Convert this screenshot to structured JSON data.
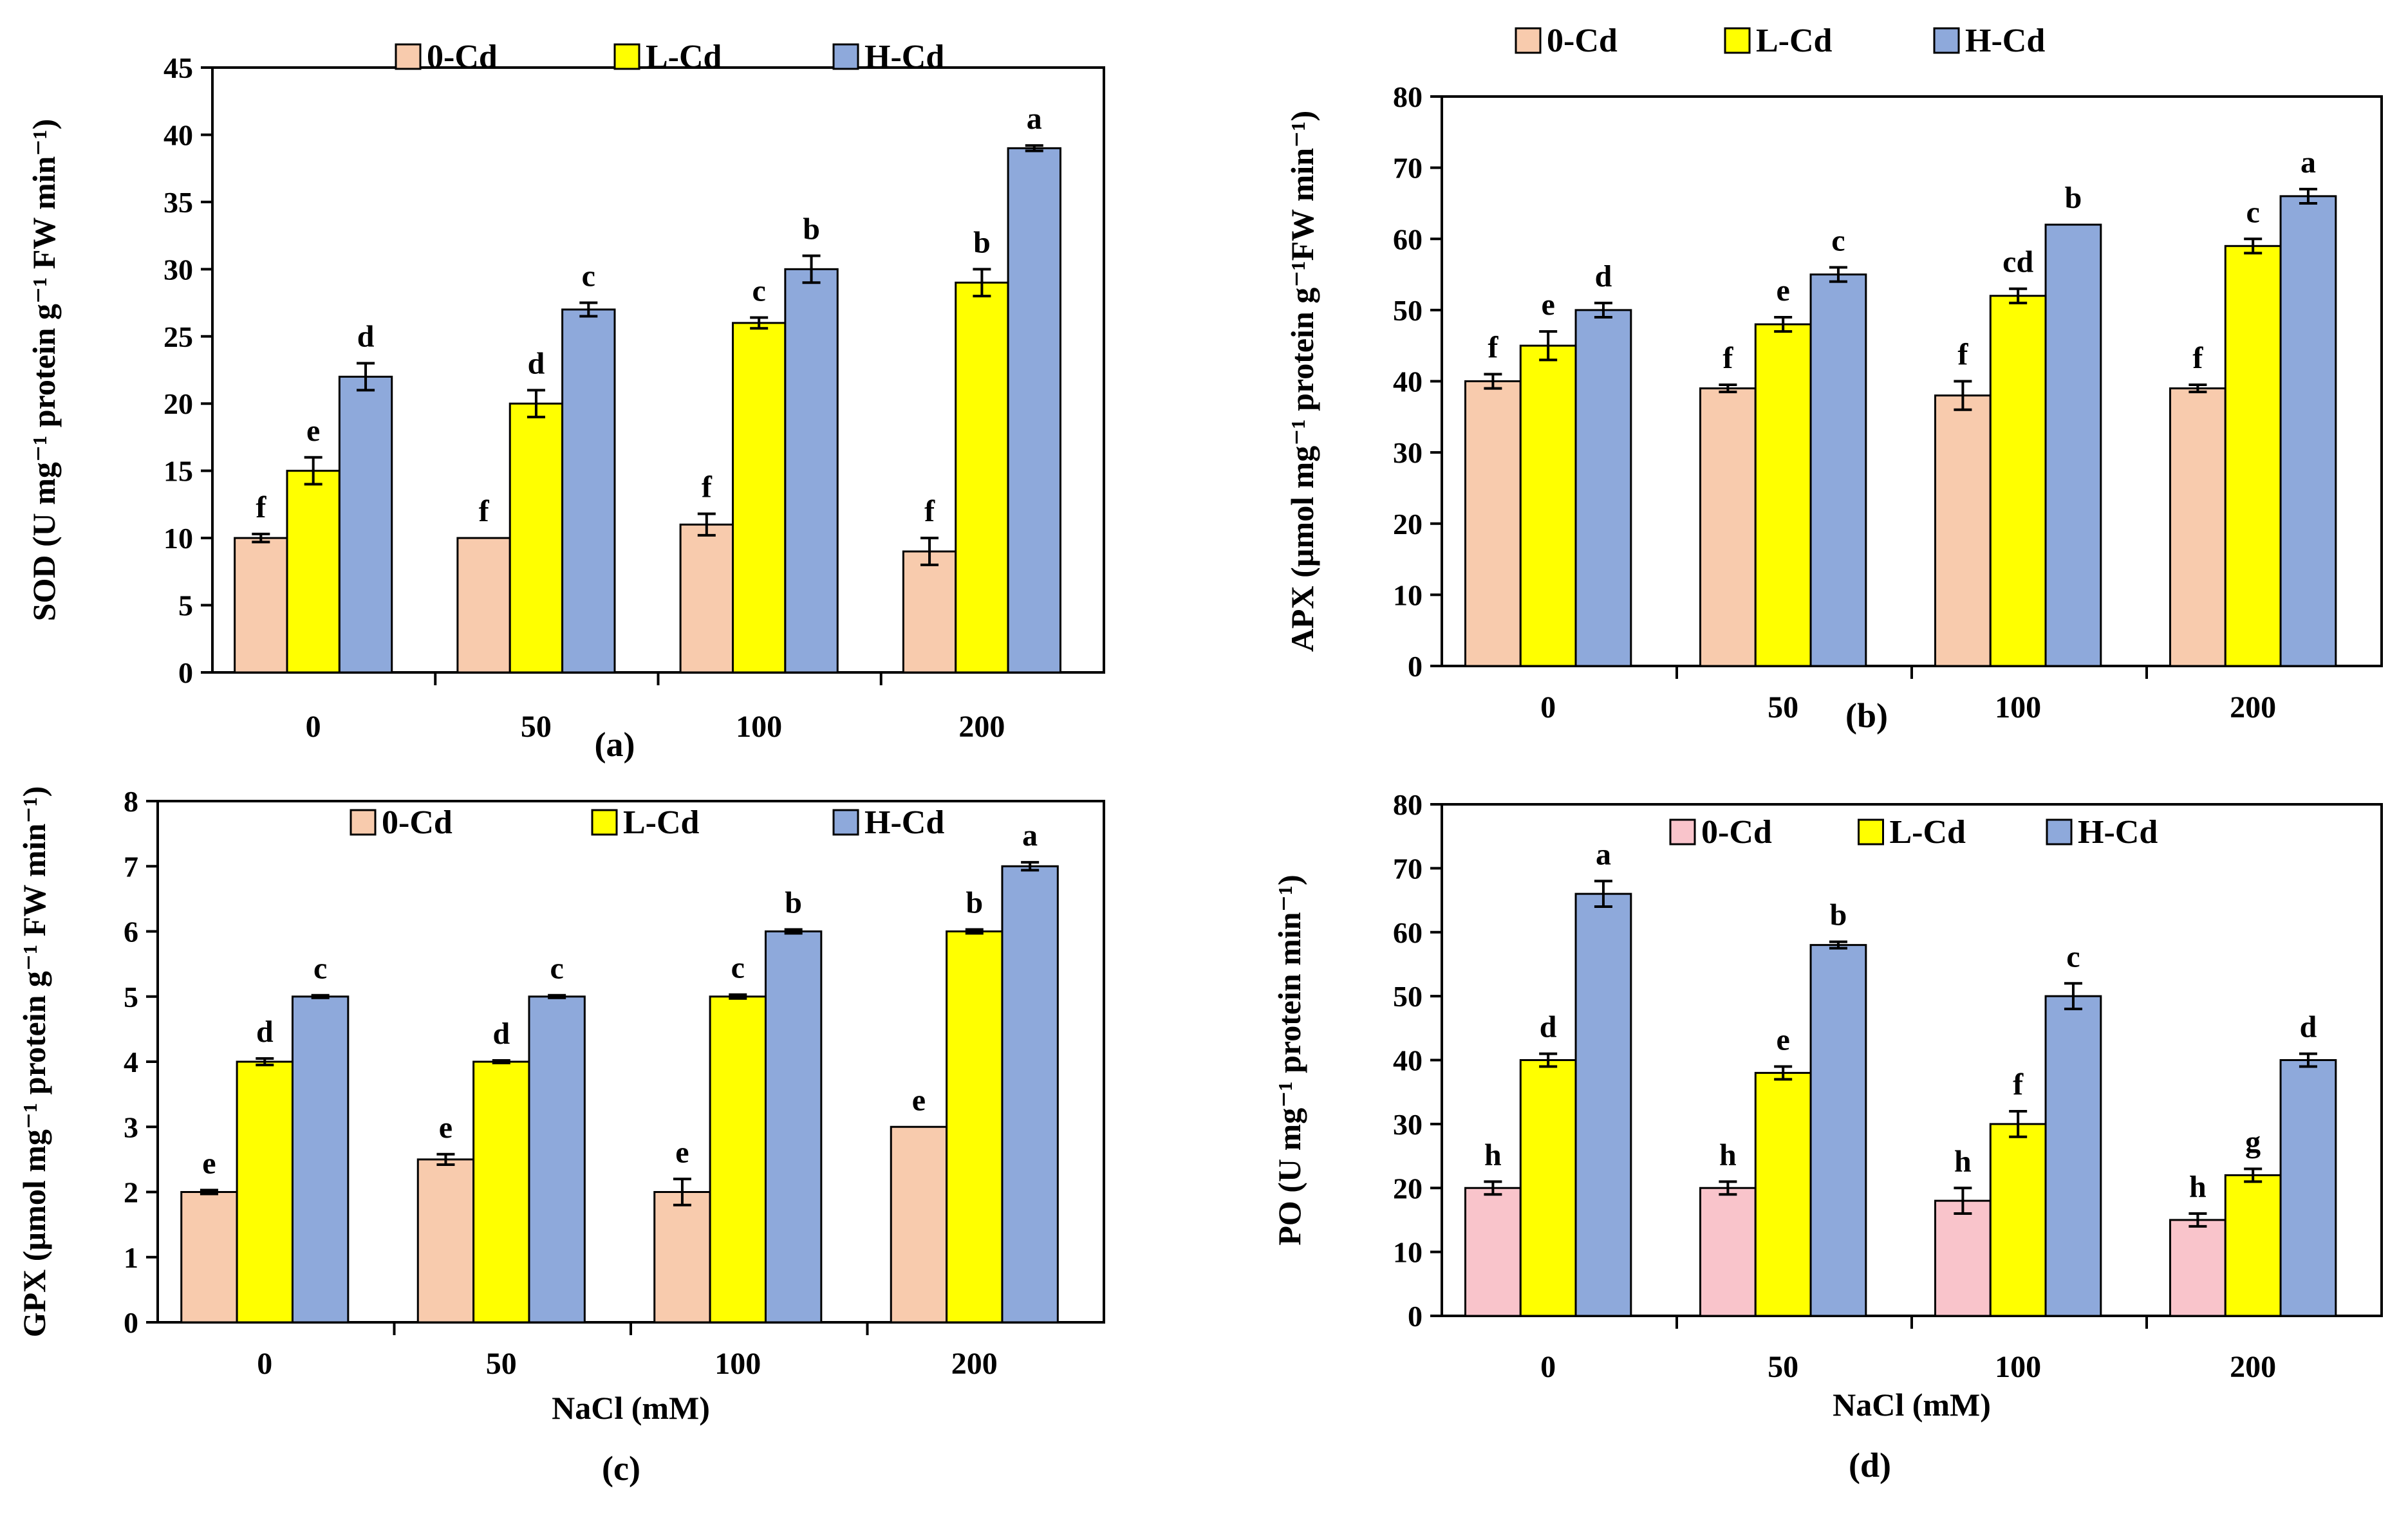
{
  "colors": {
    "zero_cd": "#F8CBAD",
    "zero_cd_po": "#F9C4CB",
    "l_cd": "#FFFF00",
    "h_cd": "#8EA9DB",
    "axis": "#000000"
  },
  "chart_data": [
    {
      "type": "bar",
      "panel_label": "(a)",
      "ylabel": "SOD (U mg⁻¹ protein g⁻¹ FW min⁻¹)",
      "xlabel": "",
      "categories": [
        "0",
        "50",
        "100",
        "200"
      ],
      "ylim": [
        0,
        45
      ],
      "ytick_step": 5,
      "y_ticks": [
        "0",
        "5",
        "10",
        "15",
        "20",
        "25",
        "30",
        "35",
        "40",
        "45"
      ],
      "legend": [
        "0-Cd",
        "L-Cd",
        "H-Cd"
      ],
      "legend_position": "top-center",
      "series": [
        {
          "name": "0-Cd",
          "values": [
            10,
            10,
            11,
            9
          ],
          "errors": [
            0.3,
            0,
            0.8,
            1.0
          ],
          "letters": [
            "f",
            "f",
            "f",
            "f"
          ]
        },
        {
          "name": "L-Cd",
          "values": [
            15,
            20,
            26,
            29
          ],
          "errors": [
            1.0,
            1.0,
            0.4,
            1.0
          ],
          "letters": [
            "e",
            "d",
            "c",
            "b"
          ]
        },
        {
          "name": "H-Cd",
          "values": [
            22,
            27,
            30,
            39
          ],
          "errors": [
            1.0,
            0.5,
            1.0,
            0.2
          ],
          "letters": [
            "d",
            "c",
            "b",
            "a"
          ]
        }
      ]
    },
    {
      "type": "bar",
      "panel_label": "(b)",
      "ylabel": "APX (µmol mg⁻¹ protein g⁻¹FW min⁻¹)",
      "xlabel": "",
      "categories": [
        "0",
        "50",
        "100",
        "200"
      ],
      "ylim": [
        0,
        80
      ],
      "ytick_step": 10,
      "y_ticks": [
        "0",
        "10",
        "20",
        "30",
        "40",
        "50",
        "60",
        "70",
        "80"
      ],
      "legend": [
        "0-Cd",
        "L-Cd",
        "H-Cd"
      ],
      "legend_position": "top-center",
      "series": [
        {
          "name": "0-Cd",
          "values": [
            40,
            39,
            38,
            39
          ],
          "errors": [
            1.0,
            0.5,
            2.0,
            0.5
          ],
          "letters": [
            "f",
            "f",
            "f",
            "f"
          ]
        },
        {
          "name": "L-Cd",
          "values": [
            45,
            48,
            52,
            59
          ],
          "errors": [
            2.0,
            1.0,
            1.0,
            1.0
          ],
          "letters": [
            "e",
            "e",
            "cd",
            "c"
          ]
        },
        {
          "name": "H-Cd",
          "values": [
            50,
            55,
            62,
            66
          ],
          "errors": [
            1.0,
            1.0,
            0,
            1.0
          ],
          "letters": [
            "d",
            "c",
            "b",
            "a"
          ]
        }
      ]
    },
    {
      "type": "bar",
      "panel_label": "(c)",
      "ylabel": "GPX (µmol mg⁻¹ protein g⁻¹ FW min⁻¹)",
      "xlabel": "NaCl (mM)",
      "categories": [
        "0",
        "50",
        "100",
        "200"
      ],
      "ylim": [
        0,
        8
      ],
      "ytick_step": 1,
      "y_ticks": [
        "0",
        "1",
        "2",
        "3",
        "4",
        "5",
        "6",
        "7",
        "8"
      ],
      "legend": [
        "0-Cd",
        "L-Cd",
        "H-Cd"
      ],
      "legend_position": "top-center",
      "series": [
        {
          "name": "0-Cd",
          "values": [
            2,
            2.5,
            2,
            3
          ],
          "errors": [
            0.03,
            0.08,
            0.2,
            0
          ],
          "letters": [
            "e",
            "e",
            "e",
            "e"
          ]
        },
        {
          "name": "L-Cd",
          "values": [
            4,
            4,
            5,
            6
          ],
          "errors": [
            0.05,
            0.02,
            0.03,
            0.03
          ],
          "letters": [
            "d",
            "d",
            "c",
            "b"
          ]
        },
        {
          "name": "H-Cd",
          "values": [
            5,
            5,
            6,
            7
          ],
          "errors": [
            0.02,
            0.02,
            0.03,
            0.06
          ],
          "letters": [
            "c",
            "c",
            "b",
            "a"
          ]
        }
      ]
    },
    {
      "type": "bar",
      "panel_label": "(d)",
      "ylabel": "PO (U mg⁻¹ protein min⁻¹)",
      "xlabel": "NaCl (mM)",
      "categories": [
        "0",
        "50",
        "100",
        "200"
      ],
      "ylim": [
        0,
        80
      ],
      "ytick_step": 10,
      "y_ticks": [
        "0",
        "10",
        "20",
        "30",
        "40",
        "50",
        "60",
        "70",
        "80"
      ],
      "legend": [
        "0-Cd",
        "L-Cd",
        "H-Cd"
      ],
      "legend_position": "top-center",
      "series": [
        {
          "name": "0-Cd",
          "values": [
            20,
            20,
            18,
            15
          ],
          "errors": [
            1.0,
            1.0,
            2.0,
            1.0
          ],
          "letters": [
            "h",
            "h",
            "h",
            "h"
          ]
        },
        {
          "name": "L-Cd",
          "values": [
            40,
            38,
            30,
            22
          ],
          "errors": [
            1.0,
            1.0,
            2.0,
            1.0
          ],
          "letters": [
            "d",
            "e",
            "f",
            "g"
          ]
        },
        {
          "name": "H-Cd",
          "values": [
            66,
            58,
            50,
            40
          ],
          "errors": [
            2.0,
            0.5,
            2.0,
            1.0
          ],
          "letters": [
            "a",
            "b",
            "c",
            "d"
          ]
        }
      ]
    }
  ]
}
